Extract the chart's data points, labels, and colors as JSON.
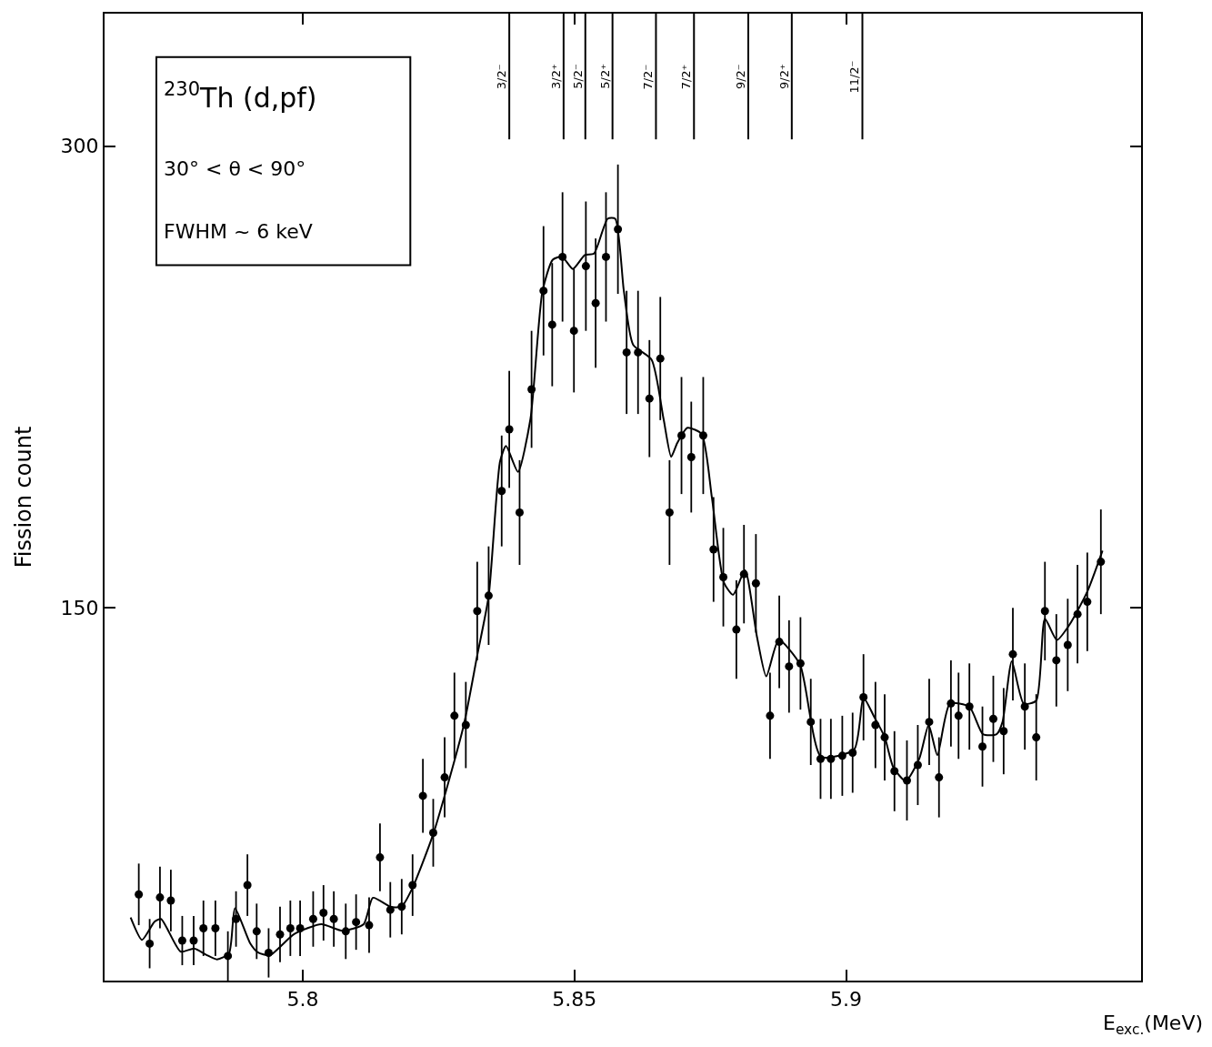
{
  "chart_data": {
    "type": "scatter",
    "xlabel": "E$_{exc.}$(MeV)",
    "ylabel": "Fission count",
    "xlim": [
      5.7635,
      5.9543
    ],
    "ylim": [
      29,
      343
    ],
    "xticks": [
      5.8,
      5.85,
      5.9
    ],
    "yticks": [
      150,
      300
    ],
    "series": [
      {
        "color": "#000000",
        "marker": "circle",
        "x": [
          5.7698,
          5.7718,
          5.7737,
          5.7757,
          5.7778,
          5.7799,
          5.7817,
          5.7839,
          5.7862,
          5.7877,
          5.7898,
          5.7915,
          5.7937,
          5.7958,
          5.7977,
          5.7995,
          5.8019,
          5.8038,
          5.8057,
          5.8079,
          5.8098,
          5.8122,
          5.8142,
          5.8161,
          5.8182,
          5.8202,
          5.8221,
          5.824,
          5.8261,
          5.8279,
          5.83,
          5.8321,
          5.8342,
          5.8366,
          5.838,
          5.8399,
          5.8421,
          5.8443,
          5.8459,
          5.8478,
          5.8499,
          5.8521,
          5.8539,
          5.8558,
          5.858,
          5.8596,
          5.8617,
          5.8638,
          5.8658,
          5.8675,
          5.8697,
          5.8715,
          5.8737,
          5.8756,
          5.8774,
          5.8798,
          5.8812,
          5.8834,
          5.886,
          5.8877,
          5.8895,
          5.8916,
          5.8935,
          5.8953,
          5.8972,
          5.8993,
          5.9012,
          5.9032,
          5.9054,
          5.9071,
          5.9089,
          5.9112,
          5.9132,
          5.9153,
          5.9171,
          5.9193,
          5.9207,
          5.9227,
          5.9251,
          5.9271,
          5.929,
          5.9307,
          5.9329,
          5.935,
          5.9366,
          5.9387,
          5.9408,
          5.9426,
          5.9444,
          5.9469
        ],
        "values": [
          57,
          41,
          56,
          55,
          42,
          42,
          46,
          46,
          37,
          49,
          60,
          45,
          38,
          44,
          46,
          46,
          49,
          51,
          49,
          45,
          48,
          47,
          69,
          52,
          53,
          60,
          89,
          77,
          95,
          115,
          112,
          149,
          154,
          188,
          208,
          181,
          221,
          253,
          242,
          264,
          240,
          261,
          249,
          264,
          273,
          233,
          233,
          218,
          231,
          181,
          206,
          199,
          206,
          169,
          160,
          143,
          161,
          158,
          115,
          139,
          131,
          132,
          113,
          101,
          101,
          102,
          103,
          121,
          112,
          108,
          97,
          94,
          99,
          113,
          95,
          119,
          115,
          118,
          105,
          114,
          110,
          135,
          118,
          108,
          149,
          133,
          138,
          148,
          152,
          165
        ],
        "errors": [
          10,
          8,
          10,
          10,
          8,
          8,
          9,
          9,
          8,
          9,
          10,
          9,
          8,
          9,
          9,
          9,
          9,
          9,
          9,
          9,
          9,
          9,
          11,
          9,
          9,
          10,
          12,
          11,
          13,
          14,
          14,
          16,
          16,
          18,
          19,
          17,
          19,
          21,
          20,
          21,
          20,
          21,
          21,
          21,
          21,
          20,
          20,
          19,
          20,
          17,
          19,
          18,
          19,
          17,
          16,
          16,
          16,
          16,
          14,
          15,
          15,
          15,
          14,
          13,
          13,
          13,
          13,
          14,
          14,
          14,
          13,
          13,
          13,
          14,
          13,
          14,
          14,
          14,
          13,
          14,
          14,
          15,
          14,
          14,
          16,
          15,
          15,
          16,
          16,
          17
        ]
      },
      {
        "type": "line",
        "color": "#000000",
        "line_style": "solid",
        "x": [
          5.7683,
          5.7704,
          5.7727,
          5.7739,
          5.7775,
          5.78,
          5.7822,
          5.7842,
          5.7864,
          5.7875,
          5.7903,
          5.7917,
          5.7939,
          5.7984,
          5.8034,
          5.8073,
          5.8112,
          5.8129,
          5.8162,
          5.8182,
          5.8201,
          5.824,
          5.8296,
          5.8321,
          5.8342,
          5.8363,
          5.8374,
          5.8396,
          5.8419,
          5.8441,
          5.846,
          5.8477,
          5.8497,
          5.8519,
          5.8536,
          5.8561,
          5.8575,
          5.8591,
          5.8608,
          5.8642,
          5.8664,
          5.8678,
          5.8689,
          5.8708,
          5.8734,
          5.8753,
          5.8775,
          5.8792,
          5.8814,
          5.8836,
          5.8853,
          5.8876,
          5.8915,
          5.8954,
          5.9015,
          5.9032,
          5.9051,
          5.9071,
          5.9087,
          5.911,
          5.9135,
          5.9152,
          5.9168,
          5.9191,
          5.9227,
          5.9252,
          5.9277,
          5.9288,
          5.9305,
          5.9327,
          5.935,
          5.9366,
          5.9388,
          5.9411,
          5.9444,
          5.9472
        ],
        "values": [
          49.5,
          42.2,
          48.1,
          49,
          38.4,
          39.4,
          37.4,
          35.9,
          37.8,
          52.5,
          41.1,
          38.2,
          37.2,
          44.1,
          47.3,
          45.2,
          47.3,
          55.9,
          52.9,
          53.1,
          58.8,
          76.6,
          111.8,
          134.6,
          153.8,
          197.6,
          202.6,
          194.2,
          211.4,
          252.8,
          263.1,
          264.1,
          260.1,
          264.6,
          265.1,
          276.4,
          276.4,
          252.8,
          235.5,
          230.6,
          211.4,
          199.1,
          203.5,
          208.5,
          206.5,
          185.8,
          158.3,
          154.3,
          162.2,
          140.6,
          127.8,
          139.6,
          131.7,
          101.7,
          104.1,
          120.9,
          114.9,
          108.1,
          98.2,
          93.8,
          101.2,
          112,
          102.2,
          118.9,
          117.9,
          109,
          109,
          113,
          132.7,
          118.9,
          119.9,
          146.5,
          139.6,
          144.5,
          155.3,
          168.6
        ]
      }
    ],
    "annotations": [
      "$^{230}$Th (d,pf)",
      "30° < θ < 90°",
      "FWHM ~ 6 keV"
    ],
    "ref_lines": [
      {
        "axis": "x",
        "value": 5.838,
        "label": "3/2⁻"
      },
      {
        "axis": "x",
        "value": 5.848,
        "label": "3/2⁺"
      },
      {
        "axis": "x",
        "value": 5.852,
        "label": "5/2⁻"
      },
      {
        "axis": "x",
        "value": 5.857,
        "label": "5/2⁺"
      },
      {
        "axis": "x",
        "value": 5.865,
        "label": "7/2⁻"
      },
      {
        "axis": "x",
        "value": 5.872,
        "label": "7/2⁺"
      },
      {
        "axis": "x",
        "value": 5.882,
        "label": "9/2⁻"
      },
      {
        "axis": "x",
        "value": 5.89,
        "label": "9/2⁺"
      },
      {
        "axis": "x",
        "value": 5.903,
        "label": "11/2⁻"
      }
    ]
  }
}
